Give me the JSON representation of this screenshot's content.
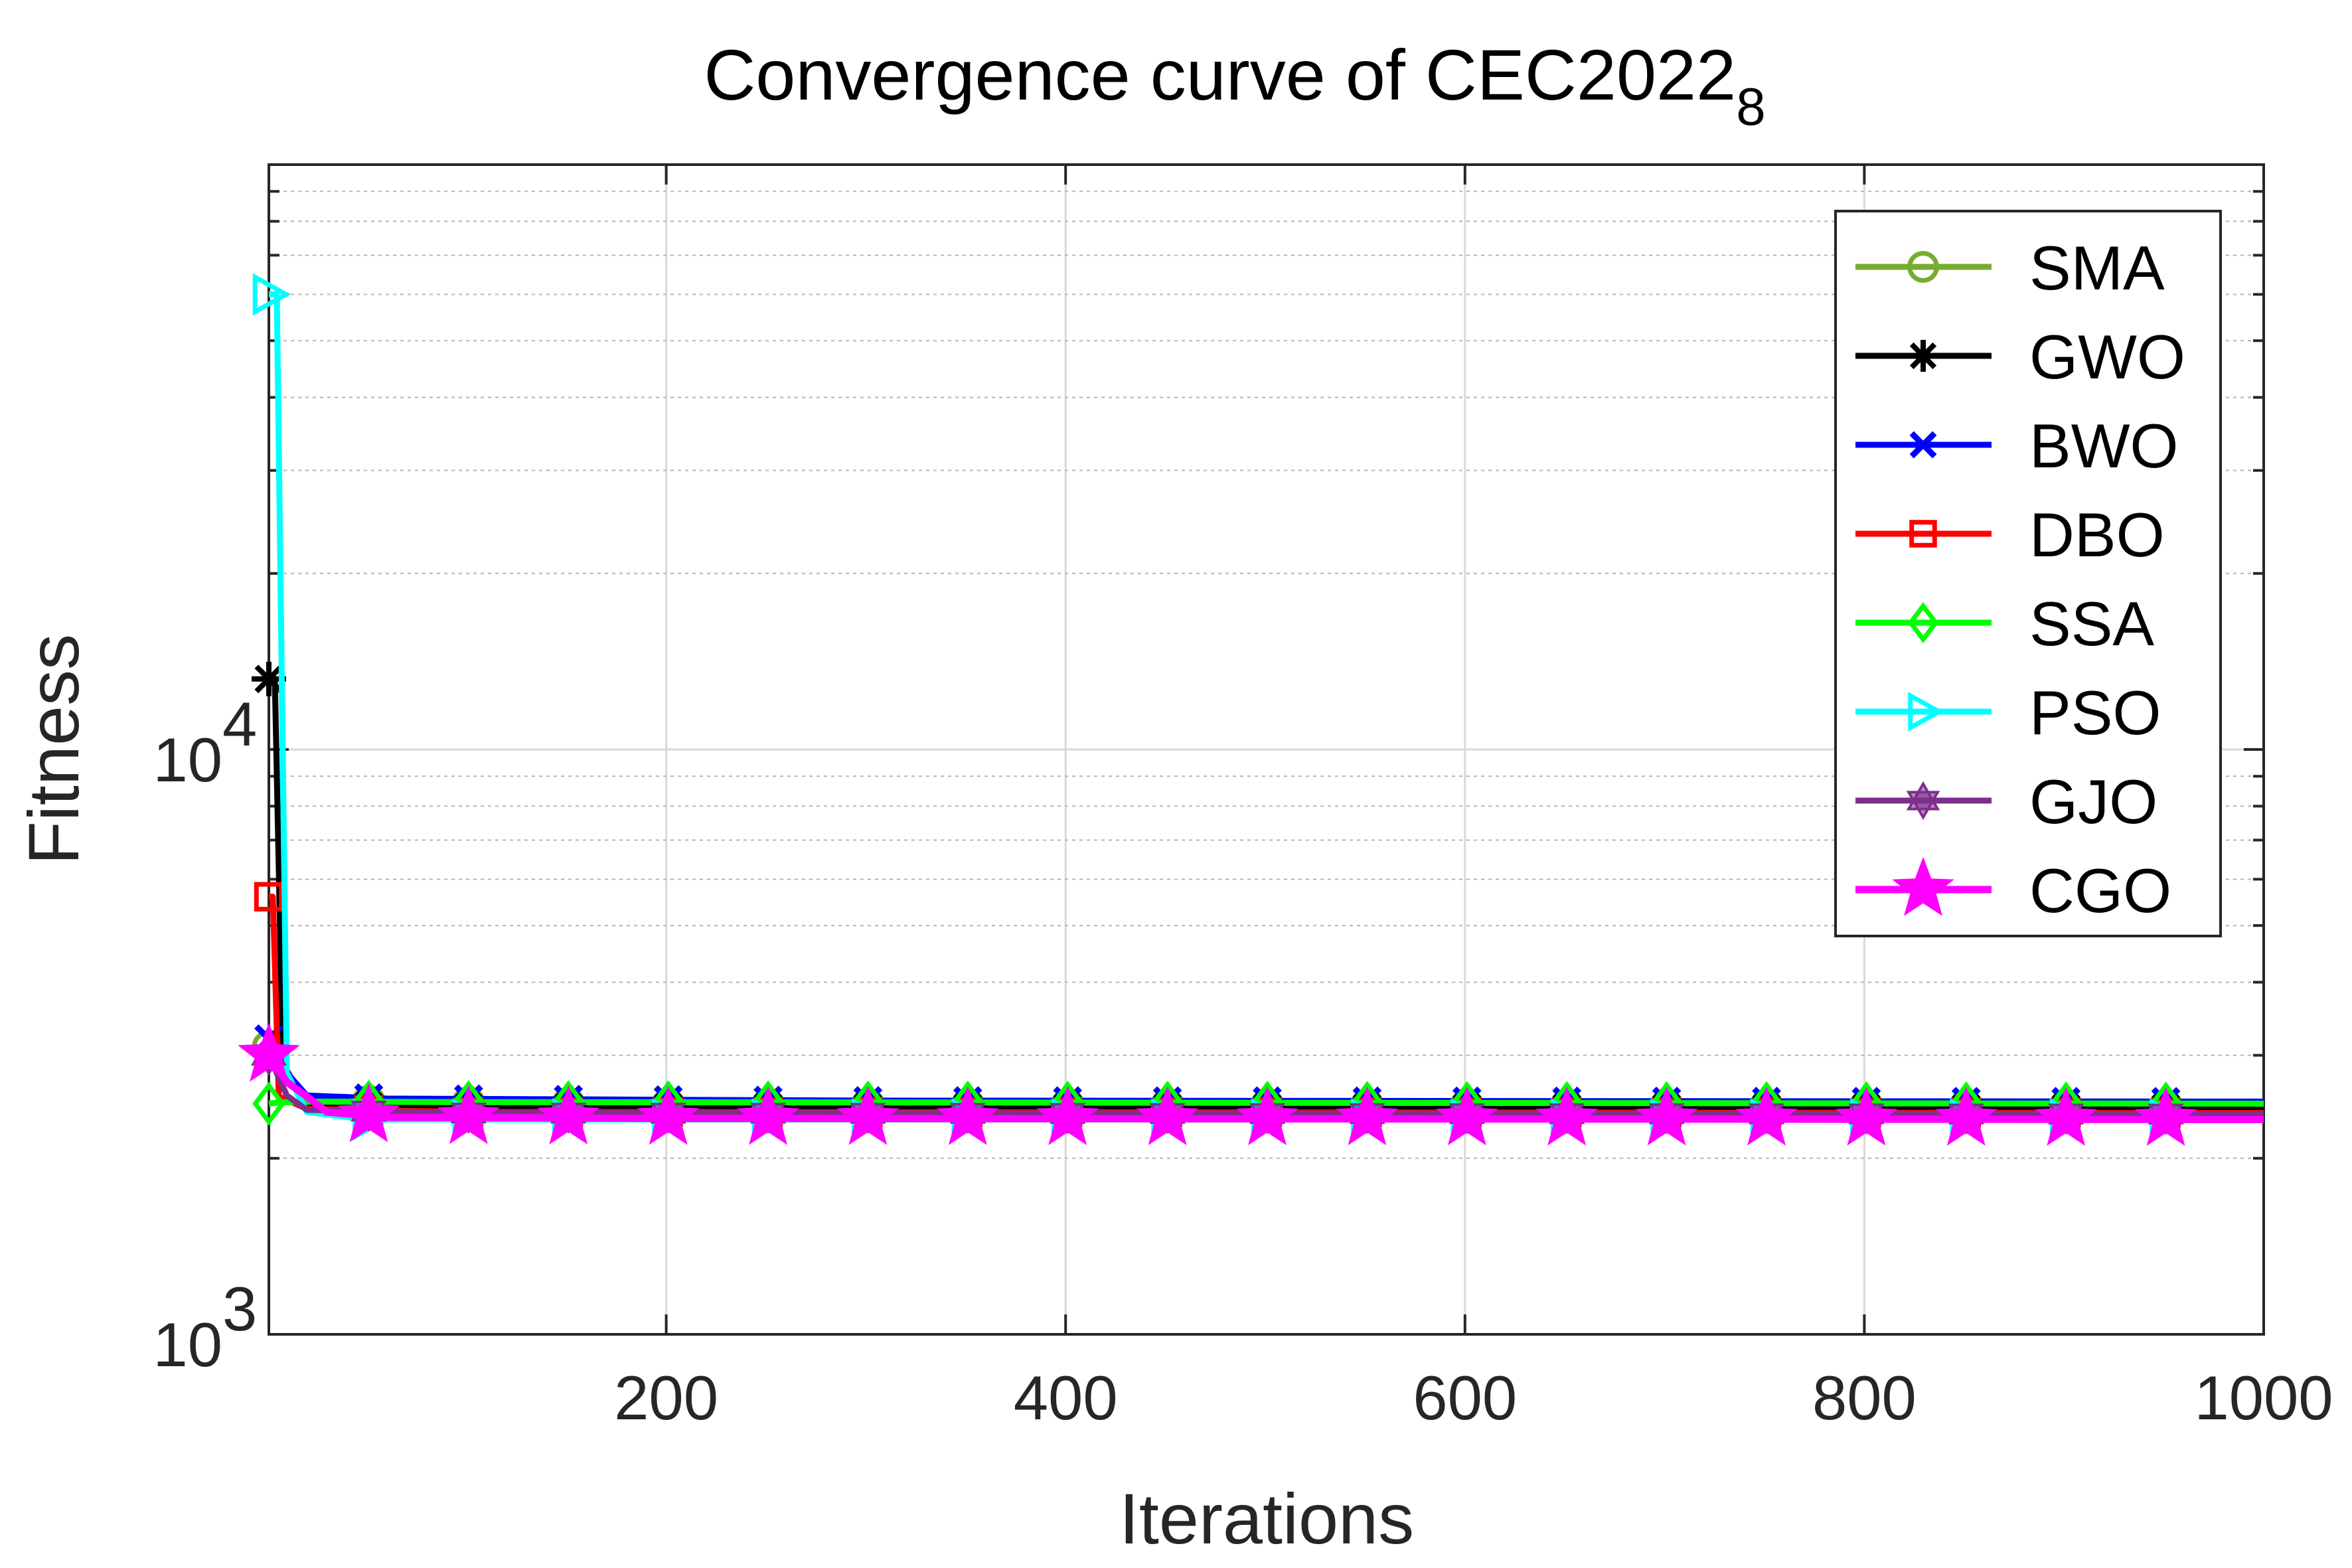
{
  "chart_data": {
    "type": "line",
    "title": {
      "main": "Convergence curve of CEC2022",
      "subscript": "8"
    },
    "xlabel": "Iterations",
    "ylabel": "Fitness",
    "xlim": [
      1,
      1000
    ],
    "ylim": [
      1000,
      100000
    ],
    "yscale": "log",
    "grid": true,
    "legend_position": "top-right",
    "x_ticks": [
      200,
      400,
      600,
      800,
      1000
    ],
    "y_ticks": [
      {
        "value": 1000,
        "base": "10",
        "exp": "3"
      },
      {
        "value": 10000,
        "base": "10",
        "exp": "4"
      }
    ],
    "marker_x": [
      1,
      51,
      101,
      151,
      201,
      251,
      301,
      351,
      401,
      451,
      501,
      551,
      601,
      651,
      701,
      751,
      801,
      851,
      901,
      951
    ],
    "series": [
      {
        "name": "SMA",
        "color": "#77AC30",
        "marker": "circle",
        "points": [
          [
            1,
            3100
          ],
          [
            10,
            2750
          ],
          [
            20,
            2520
          ],
          [
            60,
            2490
          ],
          [
            200,
            2470
          ],
          [
            1000,
            2455
          ]
        ]
      },
      {
        "name": "GWO",
        "color": "#000000",
        "marker": "asterisk",
        "points": [
          [
            1,
            13200
          ],
          [
            4,
            13200
          ],
          [
            8,
            2900
          ],
          [
            20,
            2470
          ],
          [
            100,
            2450
          ],
          [
            1000,
            2440
          ]
        ]
      },
      {
        "name": "BWO",
        "color": "#0000FF",
        "marker": "x",
        "points": [
          [
            1,
            3200
          ],
          [
            10,
            2800
          ],
          [
            20,
            2560
          ],
          [
            60,
            2530
          ],
          [
            300,
            2510
          ],
          [
            1000,
            2500
          ]
        ]
      },
      {
        "name": "DBO",
        "color": "#FF0000",
        "marker": "square",
        "points": [
          [
            1,
            5600
          ],
          [
            3,
            5600
          ],
          [
            6,
            2550
          ],
          [
            20,
            2430
          ],
          [
            100,
            2400
          ],
          [
            1000,
            2390
          ]
        ]
      },
      {
        "name": "SSA",
        "color": "#00FF00",
        "marker": "diamond",
        "points": [
          [
            1,
            2480
          ],
          [
            5,
            2490
          ],
          [
            20,
            2500
          ],
          [
            100,
            2495
          ],
          [
            1000,
            2480
          ]
        ]
      },
      {
        "name": "PSO",
        "color": "#00FFFF",
        "marker": "triangle-right",
        "points": [
          [
            1,
            60000
          ],
          [
            5,
            60000
          ],
          [
            10,
            2800
          ],
          [
            20,
            2400
          ],
          [
            50,
            2330
          ],
          [
            200,
            2330
          ],
          [
            1000,
            2330
          ]
        ]
      },
      {
        "name": "GJO",
        "color": "#7E2F8E",
        "marker": "hexagram",
        "points": [
          [
            1,
            3000
          ],
          [
            10,
            2560
          ],
          [
            20,
            2420
          ],
          [
            100,
            2390
          ],
          [
            1000,
            2380
          ]
        ]
      },
      {
        "name": "CGO",
        "color": "#FF00FF",
        "marker": "pentagram",
        "points": [
          [
            1,
            3000
          ],
          [
            10,
            2700
          ],
          [
            20,
            2550
          ],
          [
            30,
            2400
          ],
          [
            60,
            2350
          ],
          [
            200,
            2340
          ],
          [
            1000,
            2330
          ]
        ]
      }
    ]
  }
}
